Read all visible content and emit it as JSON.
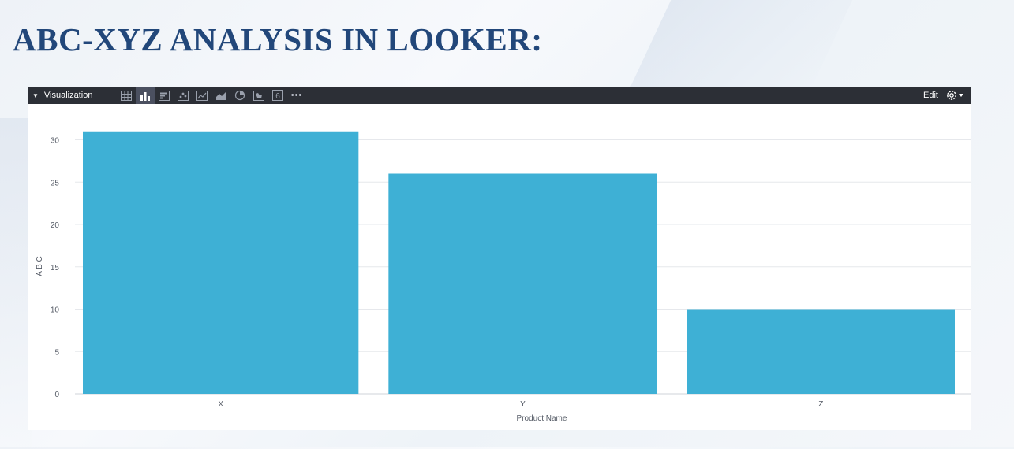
{
  "page": {
    "title": "ABC-XYZ ANALYSIS IN LOOKER:"
  },
  "toolbar": {
    "section_label": "Visualization",
    "edit_label": "Edit",
    "icons": [
      "table-icon",
      "bar-chart-icon",
      "column-chart-icon",
      "scatter-icon",
      "line-chart-icon",
      "area-chart-icon",
      "pie-chart-icon",
      "map-icon",
      "single-value-icon"
    ],
    "single_value_glyph": "6",
    "more_glyph": "•••",
    "active_icon": "bar-chart-icon"
  },
  "colors": {
    "bar": "#3eb0d5",
    "toolbar": "#2c2f36",
    "title": "#22477a"
  },
  "chart_data": {
    "type": "bar",
    "categories": [
      "X",
      "Y",
      "Z"
    ],
    "values": [
      31,
      26,
      10
    ],
    "xlabel": "Product Name",
    "ylabel": "A B C",
    "ylim": [
      0,
      32
    ],
    "yticks": [
      0,
      5,
      10,
      15,
      20,
      25,
      30
    ],
    "grid": true,
    "legend": "none"
  }
}
